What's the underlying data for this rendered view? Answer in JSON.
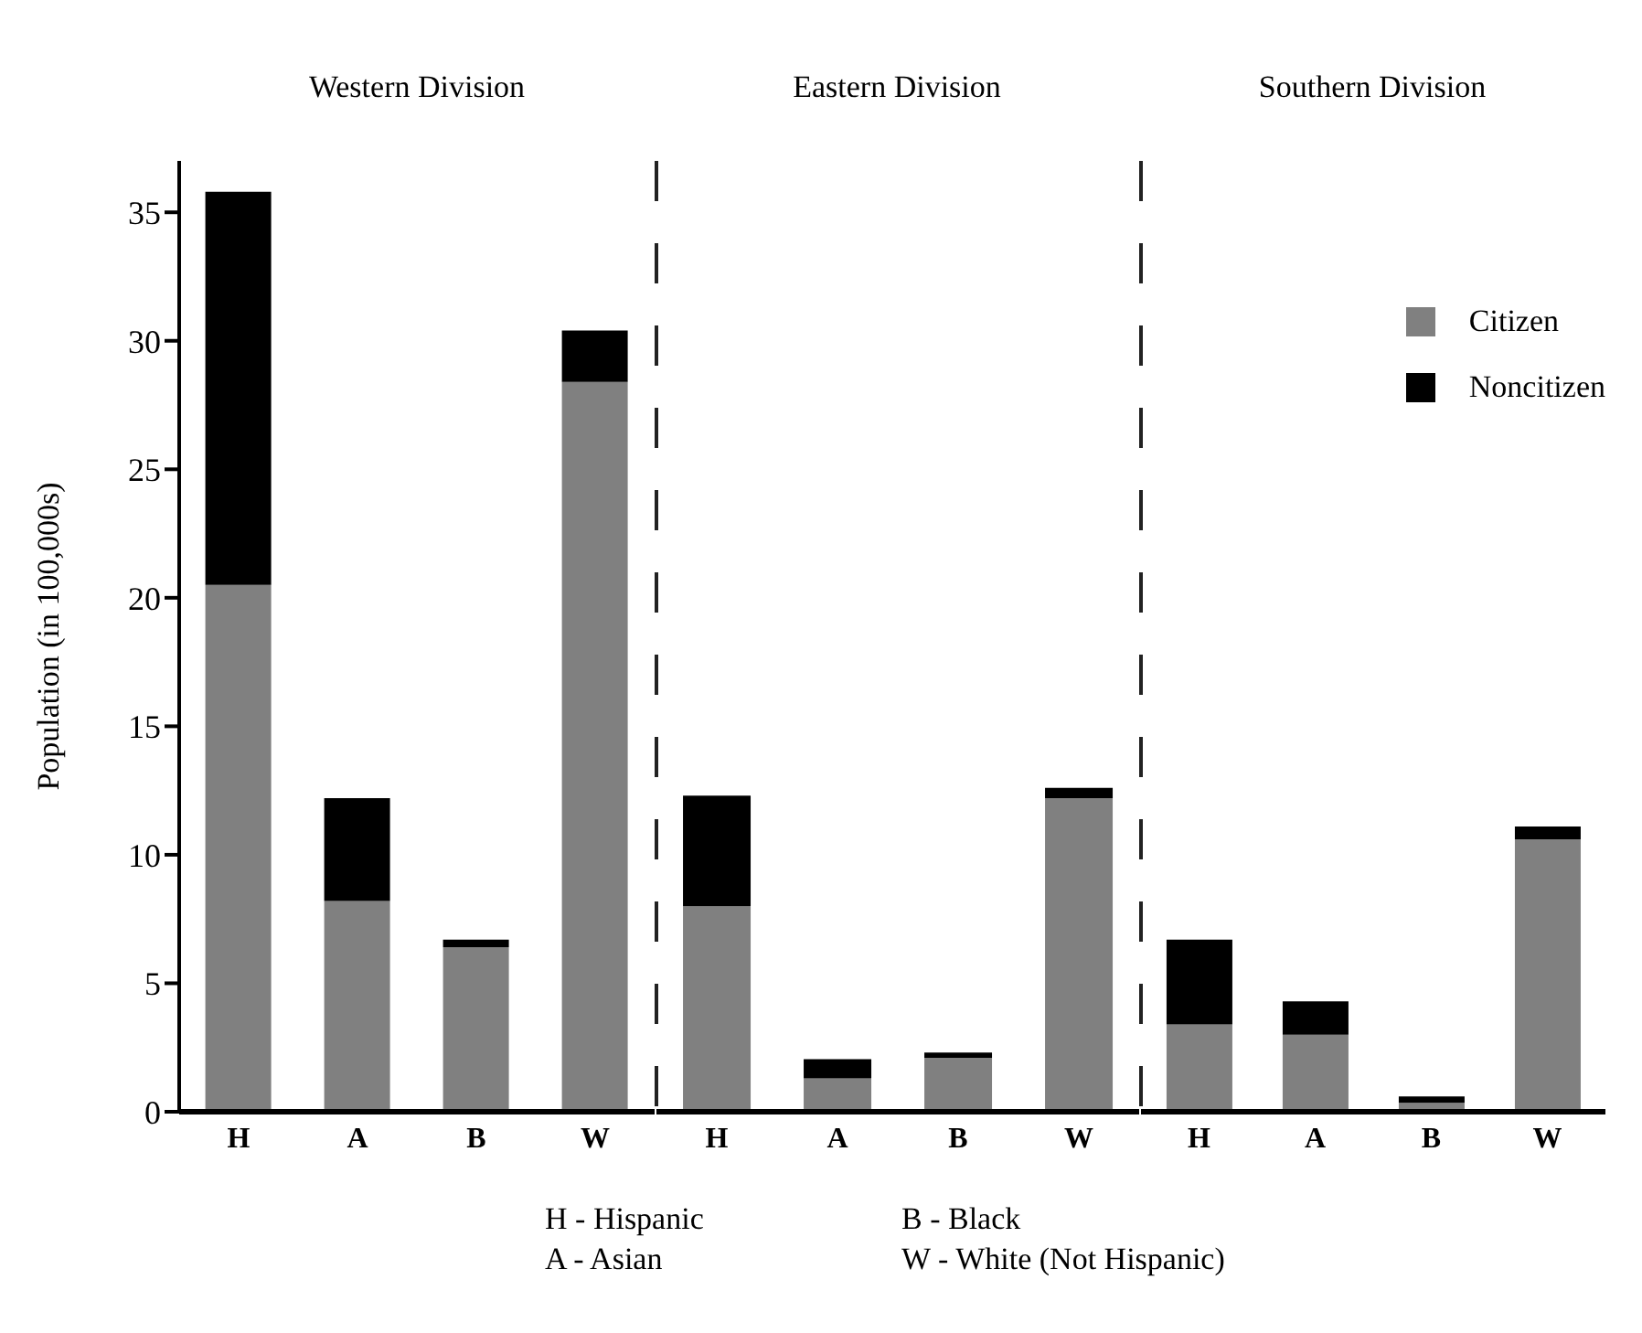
{
  "chart_data": [
    {
      "type": "bar",
      "title": "Western Division",
      "ylabel": "Population (in 100,000s)",
      "categories": [
        "H",
        "A",
        "B",
        "W"
      ],
      "stacked": true,
      "ylim": [
        0,
        37
      ],
      "yticks": [
        0,
        5,
        10,
        15,
        20,
        25,
        30,
        35
      ],
      "series": [
        {
          "color": "#808080",
          "values": [
            20.5,
            8.2,
            6.4,
            28.4
          ]
        },
        {
          "color": "#000000",
          "values": [
            15.3,
            4.0,
            0.3,
            2.0
          ]
        }
      ]
    },
    {
      "type": "bar",
      "title": "Eastern Division",
      "categories": [
        "H",
        "A",
        "B",
        "W"
      ],
      "stacked": true,
      "ylim": [
        0,
        37
      ],
      "yticks": [
        0,
        5,
        10,
        15,
        20,
        25,
        30,
        35
      ],
      "tick_labels": "x",
      "annotations": [
        "H - Hispanic",
        "B - Black",
        "A - Asian",
        "W - White (Not Hispanic)"
      ],
      "series": [
        {
          "color": "#808080",
          "values": [
            8.0,
            1.3,
            2.1,
            12.2
          ]
        },
        {
          "color": "#000000",
          "values": [
            4.3,
            0.75,
            0.2,
            0.4
          ]
        }
      ]
    },
    {
      "type": "bar",
      "title": "Southern Division",
      "categories": [
        "H",
        "A",
        "B",
        "W"
      ],
      "stacked": true,
      "ylim": [
        0,
        37
      ],
      "yticks": [
        0,
        5,
        10,
        15,
        20,
        25,
        30,
        35
      ],
      "tick_labels": "x",
      "legend": "top right",
      "series": [
        {
          "name": "Citizen",
          "color": "#808080",
          "values": [
            3.4,
            3.0,
            0.35,
            10.6
          ]
        },
        {
          "name": "Noncitizen",
          "color": "#000000",
          "values": [
            3.3,
            1.3,
            0.25,
            0.5
          ]
        }
      ]
    }
  ]
}
